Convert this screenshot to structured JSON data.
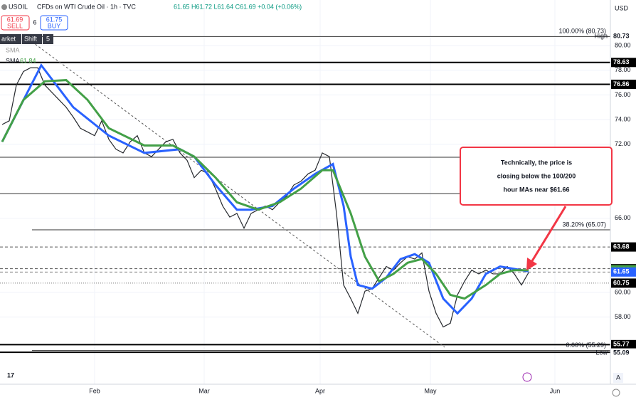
{
  "header": {
    "symbol": "USOIL",
    "title": "CFDs on WTI Crude Oil · 1h · TVC",
    "ohlc": "61.65  H61.72  L61.64  C61.69  +0.04 (+0.06%)"
  },
  "trade": {
    "sell_price": "61.69",
    "sell_label": "SELL",
    "spread": "6",
    "buy_price": "61.75",
    "buy_label": "BUY"
  },
  "toolbar": [
    "arket",
    "Shift",
    "5"
  ],
  "indicators": [
    {
      "name": "SMA"
    },
    {
      "name": "SMA",
      "value": "61.84"
    }
  ],
  "currency": "USD",
  "chart_data": {
    "type": "line",
    "ylim": [
      52.56,
      83.69
    ],
    "yticks": [
      {
        "value": 80,
        "label": "80.00"
      },
      {
        "value": 78,
        "label": "78.00"
      },
      {
        "value": 76,
        "label": "76.00"
      },
      {
        "value": 74,
        "label": "74.00"
      },
      {
        "value": 72,
        "label": "72.00"
      },
      {
        "value": 66,
        "label": "66.00"
      },
      {
        "value": 60,
        "label": "60.00"
      },
      {
        "value": 58,
        "label": "58.00"
      }
    ],
    "xticks": [
      {
        "value": 13,
        "label": "Feb"
      },
      {
        "value": 28.4,
        "label": "Mar"
      },
      {
        "value": 44.7,
        "label": "Apr"
      },
      {
        "value": 60.2,
        "label": "May"
      },
      {
        "value": 77.7,
        "label": "Jun"
      }
    ],
    "series": [
      {
        "name": "Price",
        "color": "#26292e",
        "x": [
          0,
          1,
          2,
          3,
          4,
          5,
          6,
          7,
          8,
          9,
          10,
          11,
          12,
          13,
          14,
          15,
          16,
          17,
          18,
          19,
          20,
          21,
          22,
          23,
          24,
          25,
          26,
          27,
          28,
          29,
          30,
          31,
          32,
          33,
          34,
          35,
          36,
          37,
          38,
          39,
          40,
          41,
          42,
          43,
          44,
          45,
          46,
          47,
          48,
          49,
          50,
          51,
          52,
          53,
          54,
          55,
          56,
          57,
          58,
          59,
          60,
          61,
          62,
          63,
          64,
          65,
          66,
          67,
          68,
          69,
          70,
          71,
          72,
          73,
          74
        ],
        "values": [
          73.6,
          73.9,
          76.8,
          77.9,
          78.2,
          78.2,
          76.8,
          76.2,
          75.6,
          75.0,
          74.2,
          73.3,
          73.0,
          72.7,
          73.9,
          72.4,
          71.6,
          71.3,
          72.2,
          72.7,
          71.3,
          71.0,
          71.6,
          72.2,
          72.4,
          71.3,
          70.7,
          69.3,
          69.9,
          69.6,
          68.4,
          67.0,
          66.1,
          66.4,
          65.2,
          66.4,
          66.7,
          67.0,
          66.7,
          67.3,
          67.8,
          68.7,
          69.0,
          69.6,
          69.9,
          71.3,
          71.0,
          66.4,
          60.6,
          59.5,
          58.3,
          60.1,
          60.3,
          61.2,
          62.1,
          61.8,
          62.4,
          62.9,
          62.7,
          63.2,
          60.1,
          58.3,
          57.2,
          57.5,
          59.8,
          60.9,
          61.8,
          61.5,
          61.8,
          61.5,
          61.5,
          62.1,
          61.5,
          60.6,
          61.6
        ]
      },
      {
        "name": "SMA 100",
        "color": "#2962ff",
        "x": [
          0,
          5.5,
          10,
          15,
          20,
          25,
          27,
          30,
          33,
          35,
          38,
          41,
          44,
          46.5,
          48,
          49,
          50,
          52,
          54,
          56,
          58,
          60,
          62,
          64,
          66,
          68,
          70,
          72,
          74
        ],
        "values": [
          72.2,
          78.4,
          75.0,
          72.7,
          71.3,
          71.6,
          71.0,
          68.7,
          66.7,
          66.7,
          67.0,
          68.4,
          69.6,
          70.4,
          67.0,
          62.9,
          60.6,
          60.3,
          61.2,
          62.7,
          63.1,
          62.4,
          59.5,
          58.3,
          59.5,
          61.5,
          62.1,
          61.9,
          61.7
        ]
      },
      {
        "name": "SMA 200",
        "color": "#43a047",
        "x": [
          0,
          3,
          6,
          9,
          12,
          15,
          20,
          24,
          27,
          30,
          33,
          36,
          39,
          42,
          45,
          46.5,
          49,
          51,
          53,
          55,
          57,
          59,
          61,
          63,
          65,
          68,
          70,
          72,
          74
        ],
        "values": [
          72.2,
          75.6,
          77.1,
          77.2,
          75.6,
          73.3,
          71.9,
          71.9,
          71.0,
          69.3,
          67.3,
          66.7,
          67.3,
          68.4,
          69.9,
          69.9,
          66.4,
          62.9,
          60.9,
          61.5,
          62.4,
          62.7,
          61.5,
          59.8,
          59.5,
          60.6,
          61.5,
          61.8,
          61.8
        ]
      }
    ],
    "levels": [
      {
        "value": 80.73,
        "color": "#333333",
        "width": 1,
        "dash": "none",
        "label": "100.00% (80.73)"
      },
      {
        "value": 78.63,
        "color": "#000000",
        "width": 2,
        "dash": "none"
      },
      {
        "value": 76.86,
        "color": "#000000",
        "width": 2,
        "dash": "none"
      },
      {
        "value": 70.95,
        "color": "#333333",
        "width": 1,
        "dash": "none"
      },
      {
        "value": 68.0,
        "color": "#333333",
        "width": 1,
        "dash": "none"
      },
      {
        "value": 65.07,
        "color": "#333333",
        "width": 1,
        "dash": "none",
        "label": "38.20% (65.07)"
      },
      {
        "value": 63.68,
        "color": "#555555",
        "width": 1,
        "dash": "4 3"
      },
      {
        "value": 61.92,
        "color": "#555555",
        "width": 1,
        "dash": "4 3"
      },
      {
        "value": 61.65,
        "color": "#777777",
        "width": 1,
        "dash": "4 3"
      },
      {
        "value": 60.75,
        "color": "#777777",
        "width": 1,
        "dash": "1 2"
      },
      {
        "value": 55.77,
        "color": "#000000",
        "width": 2,
        "dash": "none"
      },
      {
        "value": 55.29,
        "color": "#333333",
        "width": 1,
        "dash": "none",
        "label": "0.00% (55.29)"
      },
      {
        "value": 55.15,
        "color": "#000000",
        "width": 2,
        "dash": "none"
      }
    ],
    "price_labels": [
      {
        "value": 80.73,
        "bg": "#ffffff",
        "fg": "#131722",
        "tag": "High"
      },
      {
        "value": 78.63,
        "bg": "#000000",
        "fg": "#ffffff"
      },
      {
        "value": 76.86,
        "bg": "#000000",
        "fg": "#ffffff"
      },
      {
        "value": 63.68,
        "bg": "#000000",
        "fg": "#ffffff"
      },
      {
        "value": 61.92,
        "bg": "#000000",
        "fg": "#ffffff"
      },
      {
        "value": 61.84,
        "bg": "#43a047",
        "fg": "#ffffff"
      },
      {
        "value": 61.69,
        "bg": "#43a047",
        "fg": "#ffffff"
      },
      {
        "value": 61.65,
        "bg": "#2962ff",
        "fg": "#ffffff"
      },
      {
        "value": 60.75,
        "bg": "#000000",
        "fg": "#ffffff"
      },
      {
        "value": 55.77,
        "bg": "#000000",
        "fg": "#ffffff"
      },
      {
        "value": 55.15,
        "bg": "#000000",
        "fg": "#ffffff"
      },
      {
        "value": 55.09,
        "bg": "#ffffff",
        "fg": "#131722",
        "tag": "Low"
      }
    ],
    "annotations": [
      "Technically, the price is",
      "closing below the 100/200",
      "hour MAs near $61.66"
    ]
  }
}
